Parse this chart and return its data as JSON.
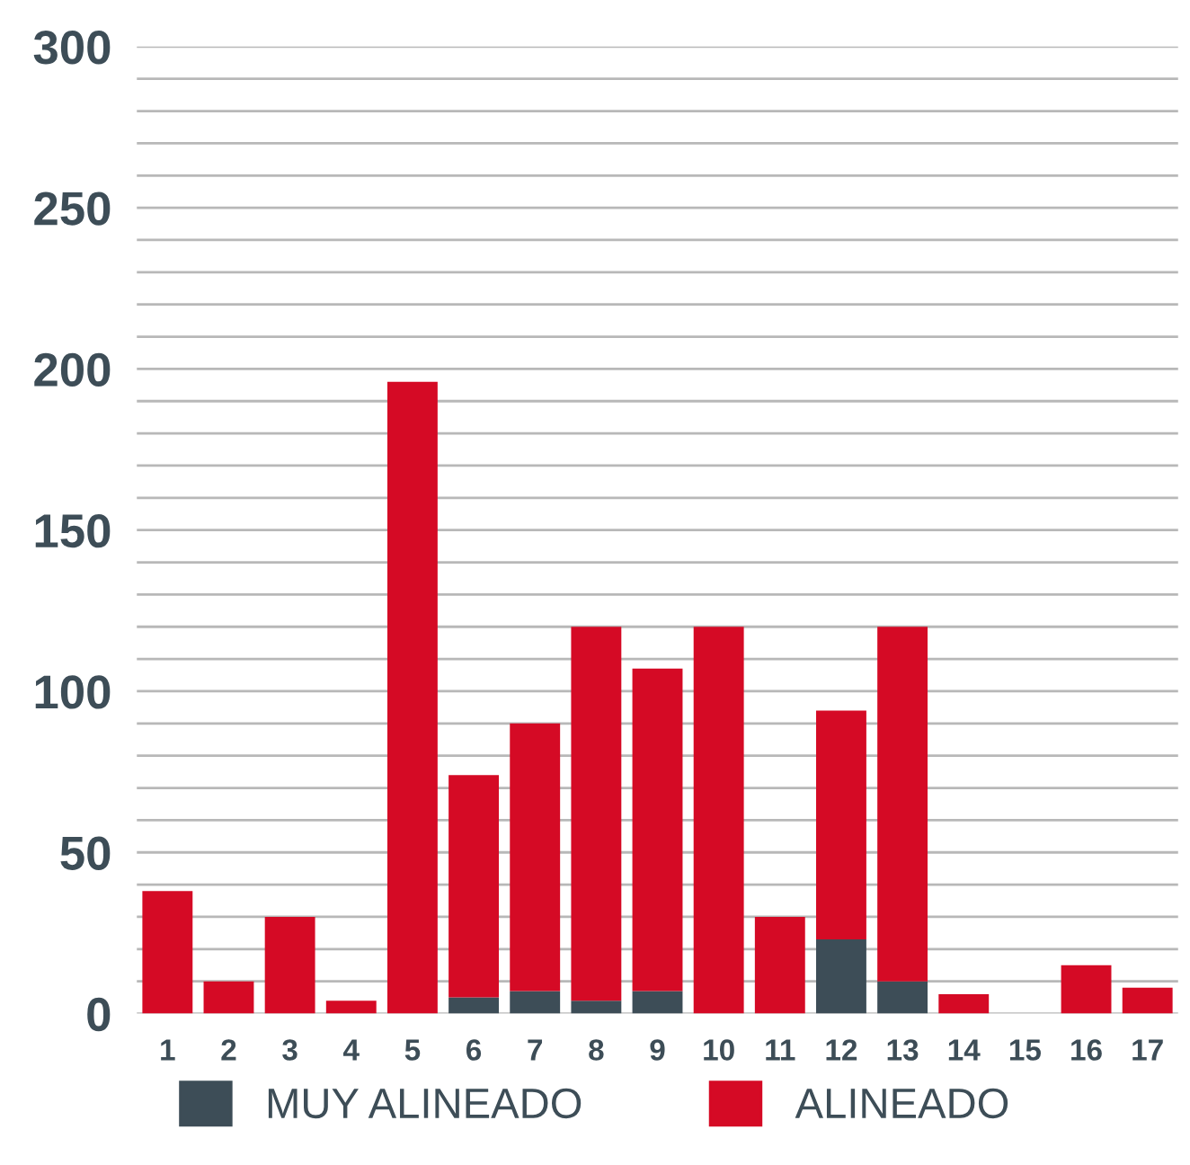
{
  "chart_data": {
    "type": "bar",
    "stacked": true,
    "categories": [
      "1",
      "2",
      "3",
      "4",
      "5",
      "6",
      "7",
      "8",
      "9",
      "10",
      "11",
      "12",
      "13",
      "14",
      "15",
      "16",
      "17"
    ],
    "series": [
      {
        "name": "MUY ALINEADO",
        "color": "#3d4d57",
        "values": [
          0,
          0,
          0,
          0,
          0,
          5,
          7,
          4,
          7,
          0,
          0,
          23,
          10,
          0,
          0,
          0,
          0
        ]
      },
      {
        "name": "ALINEADO",
        "color": "#d50a25",
        "values": [
          38,
          10,
          30,
          4,
          196,
          69,
          83,
          116,
          100,
          120,
          30,
          71,
          110,
          6,
          0,
          15,
          8
        ]
      }
    ],
    "ylim": [
      0,
      300
    ],
    "yticks": [
      0,
      {
        "value": 10,
        "label": null
      },
      {
        "value": 20,
        "label": null
      },
      {
        "value": 30,
        "label": null
      },
      {
        "value": 40,
        "label": null
      },
      50,
      {
        "value": 60,
        "label": null
      },
      {
        "value": 70,
        "label": null
      },
      {
        "value": 80,
        "label": null
      },
      {
        "value": 90,
        "label": null
      },
      100,
      {
        "value": 110,
        "label": null
      },
      {
        "value": 120,
        "label": null
      },
      {
        "value": 130,
        "label": null
      },
      {
        "value": 140,
        "label": null
      },
      150,
      {
        "value": 160,
        "label": null
      },
      {
        "value": 170,
        "label": null
      },
      {
        "value": 180,
        "label": null
      },
      {
        "value": 190,
        "label": null
      },
      200,
      {
        "value": 210,
        "label": null
      },
      {
        "value": 220,
        "label": null
      },
      {
        "value": 230,
        "label": null
      },
      {
        "value": 240,
        "label": null
      },
      250,
      {
        "value": 260,
        "label": null
      },
      {
        "value": 270,
        "label": null
      },
      {
        "value": 280,
        "label": null
      },
      {
        "value": 290,
        "label": null
      },
      300
    ],
    "grid": "y",
    "legend": "bottom"
  }
}
